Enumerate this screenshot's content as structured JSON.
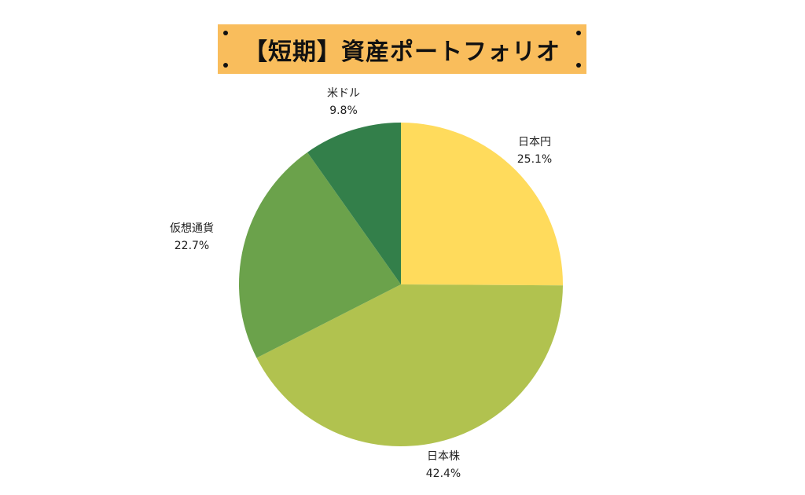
{
  "title": "【短期】資産ポートフォリオ",
  "colors": {
    "title_background": "#f9bd5c"
  },
  "chart_data": {
    "type": "pie",
    "start_angle_deg": 0,
    "direction": "clockwise",
    "slices": [
      {
        "label": "日本円",
        "value": 25.1,
        "display": "25.1%",
        "color": "#ffdb5c"
      },
      {
        "label": "日本株",
        "value": 42.4,
        "display": "42.4%",
        "color": "#b1c24f"
      },
      {
        "label": "仮想通貨",
        "value": 22.7,
        "display": "22.7%",
        "color": "#6ba24b"
      },
      {
        "label": "米ドル",
        "value": 9.8,
        "display": "9.8%",
        "color": "#337f4a"
      }
    ]
  }
}
